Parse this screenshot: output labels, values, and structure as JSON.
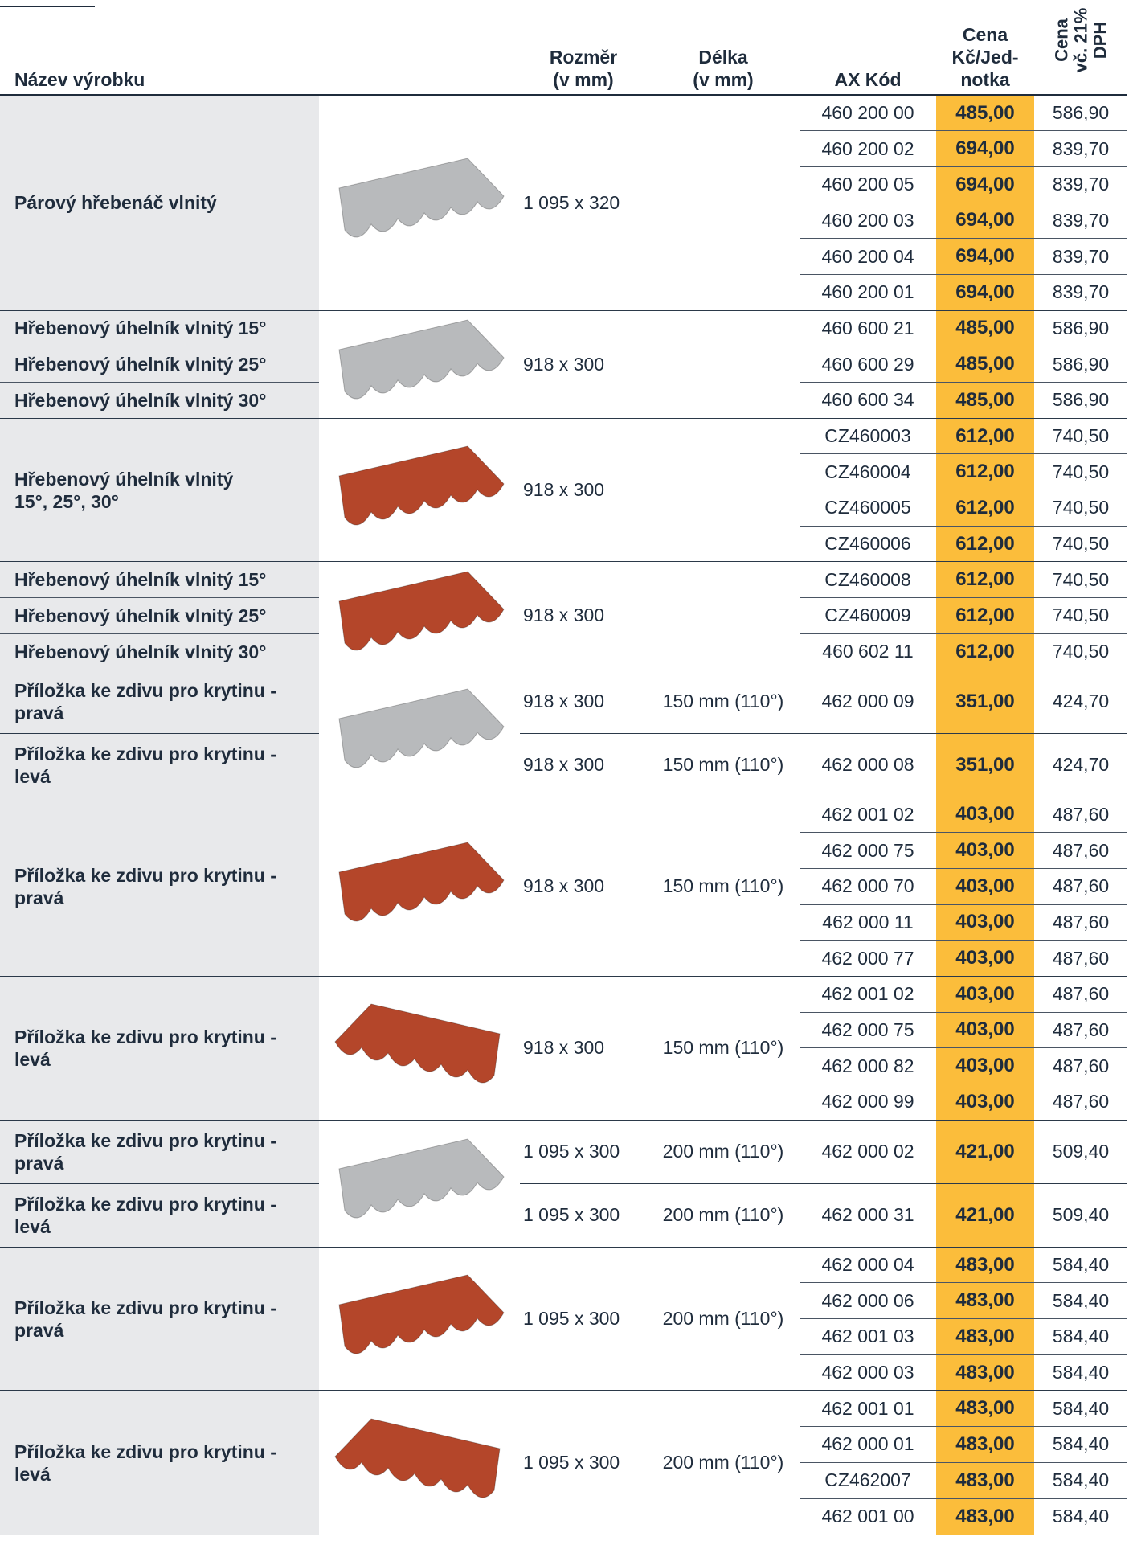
{
  "header": {
    "name": "Název výrobku",
    "size": [
      "Rozměr",
      "(v mm)"
    ],
    "length": [
      "Délka",
      "(v mm)"
    ],
    "code": "AX Kód",
    "price": [
      "Cena",
      "Kč/Jed-",
      "notka"
    ],
    "price_vat": [
      "Cena",
      "vč. 21%",
      "DPH"
    ]
  },
  "groups": [
    {
      "names": [
        "Párový hřebenáč vlnitý"
      ],
      "size": "1 095 x 320",
      "image_color": "#b8babc",
      "items": [
        {
          "code": "460 200 00",
          "price": "485,00",
          "price_vat": "586,90"
        },
        {
          "code": "460 200 02",
          "price": "694,00",
          "price_vat": "839,70"
        },
        {
          "code": "460 200 05",
          "price": "694,00",
          "price_vat": "839,70"
        },
        {
          "code": "460 200 03",
          "price": "694,00",
          "price_vat": "839,70"
        },
        {
          "code": "460 200 04",
          "price": "694,00",
          "price_vat": "839,70"
        },
        {
          "code": "460 200 01",
          "price": "694,00",
          "price_vat": "839,70"
        }
      ]
    },
    {
      "names": [
        "Hřebenový úhelník vlnitý 15°",
        "Hřebenový úhelník vlnitý 25°",
        "Hřebenový úhelník vlnitý 30°"
      ],
      "size": "918 x 300",
      "image_color": "#b8babc",
      "items": [
        {
          "code": "460 600 21",
          "price": "485,00",
          "price_vat": "586,90"
        },
        {
          "code": "460 600 29",
          "price": "485,00",
          "price_vat": "586,90"
        },
        {
          "code": "460 600 34",
          "price": "485,00",
          "price_vat": "586,90"
        }
      ]
    },
    {
      "names": [
        "Hřebenový úhelník vlnitý\n15°, 25°, 30°"
      ],
      "size": "918 x 300",
      "image_color": "#b4462a",
      "items": [
        {
          "code": "CZ460003",
          "price": "612,00",
          "price_vat": "740,50"
        },
        {
          "code": "CZ460004",
          "price": "612,00",
          "price_vat": "740,50"
        },
        {
          "code": "CZ460005",
          "price": "612,00",
          "price_vat": "740,50"
        },
        {
          "code": "CZ460006",
          "price": "612,00",
          "price_vat": "740,50"
        }
      ]
    },
    {
      "names": [
        "Hřebenový úhelník vlnitý 15°",
        "Hřebenový úhelník vlnitý 25°",
        "Hřebenový úhelník vlnitý 30°"
      ],
      "size": "918 x 300",
      "image_color": "#b4462a",
      "items": [
        {
          "code": "CZ460008",
          "price": "612,00",
          "price_vat": "740,50"
        },
        {
          "code": "CZ460009",
          "price": "612,00",
          "price_vat": "740,50"
        },
        {
          "code": "460 602 11",
          "price": "612,00",
          "price_vat": "740,50"
        }
      ]
    },
    {
      "names": [
        "Příložka ke zdivu pro krytinu - pravá"
      ],
      "size": "918 x 300",
      "length": "150 mm (110°)",
      "image_color": "#b8babc",
      "items": [
        {
          "code": "462 000 09",
          "price": "351,00",
          "price_vat": "424,70"
        }
      ]
    },
    {
      "names": [
        "Příložka ke zdivu pro krytinu - levá"
      ],
      "size": "918 x 300",
      "length": "150 mm (110°)",
      "items": [
        {
          "code": "462 000 08",
          "price": "351,00",
          "price_vat": "424,70"
        }
      ]
    },
    {
      "names": [
        "Příložka ke zdivu pro krytinu - pravá"
      ],
      "size": "918 x 300",
      "length": "150 mm (110°)",
      "image_color": "#b4462a",
      "items": [
        {
          "code": "462 001 02",
          "price": "403,00",
          "price_vat": "487,60"
        },
        {
          "code": "462 000 75",
          "price": "403,00",
          "price_vat": "487,60"
        },
        {
          "code": "462 000 70",
          "price": "403,00",
          "price_vat": "487,60"
        },
        {
          "code": "462 000 11",
          "price": "403,00",
          "price_vat": "487,60"
        },
        {
          "code": "462 000 77",
          "price": "403,00",
          "price_vat": "487,60"
        }
      ]
    },
    {
      "names": [
        "Příložka ke zdivu pro krytinu - levá"
      ],
      "size": "918 x 300",
      "length": "150 mm (110°)",
      "image_color": "#b4462a",
      "items": [
        {
          "code": "462 001 02",
          "price": "403,00",
          "price_vat": "487,60"
        },
        {
          "code": "462 000 75",
          "price": "403,00",
          "price_vat": "487,60"
        },
        {
          "code": "462 000 82",
          "price": "403,00",
          "price_vat": "487,60"
        },
        {
          "code": "462 000 99",
          "price": "403,00",
          "price_vat": "487,60"
        }
      ]
    },
    {
      "names": [
        "Příložka ke zdivu pro krytinu - pravá"
      ],
      "size": "1 095 x 300",
      "length": "200 mm (110°)",
      "image_color": "#b8babc",
      "items": [
        {
          "code": "462 000 02",
          "price": "421,00",
          "price_vat": "509,40"
        }
      ]
    },
    {
      "names": [
        "Příložka ke zdivu pro krytinu - levá"
      ],
      "size": "1 095 x 300",
      "length": "200 mm (110°)",
      "items": [
        {
          "code": "462 000 31",
          "price": "421,00",
          "price_vat": "509,40"
        }
      ]
    },
    {
      "names": [
        "Příložka ke zdivu pro krytinu - pravá"
      ],
      "size": "1 095 x 300",
      "length": "200 mm (110°)",
      "image_color": "#b4462a",
      "items": [
        {
          "code": "462 000 04",
          "price": "483,00",
          "price_vat": "584,40"
        },
        {
          "code": "462 000 06",
          "price": "483,00",
          "price_vat": "584,40"
        },
        {
          "code": "462 001 03",
          "price": "483,00",
          "price_vat": "584,40"
        },
        {
          "code": "462 000 03",
          "price": "483,00",
          "price_vat": "584,40"
        }
      ]
    },
    {
      "names": [
        "Příložka ke zdivu pro krytinu - levá"
      ],
      "size": "1 095 x 300",
      "length": "200 mm (110°)",
      "image_color": "#b4462a",
      "items": [
        {
          "code": "462 001 01",
          "price": "483,00",
          "price_vat": "584,40"
        },
        {
          "code": "462 000 01",
          "price": "483,00",
          "price_vat": "584,40"
        },
        {
          "code": "CZ462007",
          "price": "483,00",
          "price_vat": "584,40"
        },
        {
          "code": "462 001 00",
          "price": "483,00",
          "price_vat": "584,40"
        }
      ]
    }
  ]
}
